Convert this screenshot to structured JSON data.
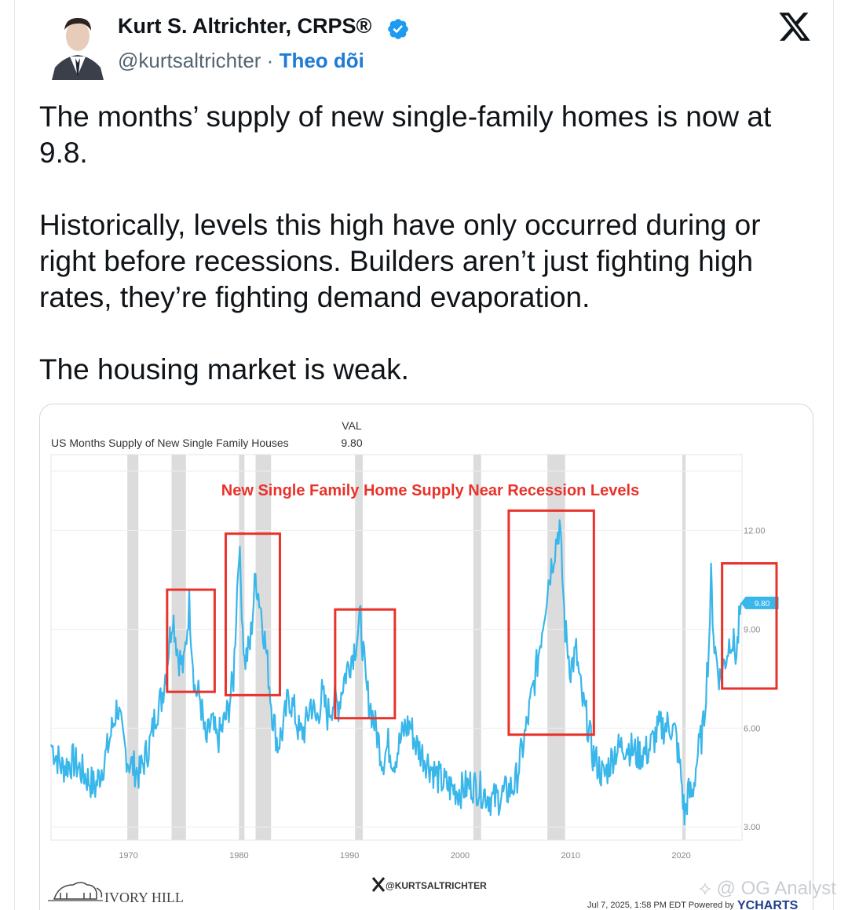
{
  "tweet": {
    "author_name": "Kurt S. Altrichter, CRPS®",
    "handle": "@kurtsaltrichter",
    "separator": "·",
    "follow_label": "Theo dõi",
    "paragraphs": [
      "The months’ supply of new single-family homes is now at 9.8.",
      "Historically, levels this high have only occurred during or right before recessions. Builders aren’t just fighting high rates, they’re fighting demand evaporation.",
      "The housing market is weak."
    ]
  },
  "colors": {
    "line": "#39b6ea",
    "highlight_box": "#e8322a",
    "recession_band": "#dcdcdc",
    "verified": "#1d9bf0",
    "follow": "#1d7bd6"
  },
  "chart": {
    "series_title": "US Months Supply of New Single Family Houses",
    "val_header": "VAL",
    "val_value": "9.80",
    "annotation": "New Single Family Home Supply Near Recession Levels",
    "end_label": "9.80",
    "footer_left": "IVORY HILL",
    "footer_center": "@KURTSALTRICHTER",
    "footer_right_date": "Jul 7, 2025, 1:58 PM EDT Powered by",
    "footer_right_brand": "YCHARTS"
  },
  "chart_data": {
    "type": "line",
    "title": "US Months Supply of New Single Family Houses",
    "subtitle": "New Single Family Home Supply Near Recession Levels",
    "x_ticks": [
      "1970",
      "1980",
      "1990",
      "2000",
      "2010",
      "2020"
    ],
    "y_ticks": [
      "3.00",
      "6.00",
      "9.00",
      "12.00"
    ],
    "xlim": [
      1963,
      2025.5
    ],
    "ylim": [
      2.6,
      14.3
    ],
    "y_axis_side": "right",
    "grid": "horizontal",
    "recession_bands": [
      [
        1969.9,
        1970.9
      ],
      [
        1973.9,
        1975.2
      ],
      [
        1980.0,
        1980.5
      ],
      [
        1981.5,
        1982.9
      ],
      [
        1990.5,
        1991.2
      ],
      [
        2001.2,
        2001.9
      ],
      [
        2007.9,
        2009.5
      ],
      [
        2020.1,
        2020.4
      ]
    ],
    "highlight_periods": [
      [
        1973.5,
        1977.8
      ],
      [
        1978.8,
        1983.7
      ],
      [
        1988.7,
        1994.1
      ],
      [
        2004.4,
        2012.1
      ],
      [
        2023.7,
        2029.2
      ]
    ],
    "series": [
      {
        "values": [
          [
            1963.0,
            5.5
          ],
          [
            1964.0,
            4.8
          ],
          [
            1965.0,
            5.0
          ],
          [
            1966.0,
            4.6
          ],
          [
            1967.0,
            4.2
          ],
          [
            1968.0,
            5.2
          ],
          [
            1969.0,
            6.7
          ],
          [
            1969.5,
            5.6
          ],
          [
            1970.0,
            5.0
          ],
          [
            1971.0,
            4.6
          ],
          [
            1972.0,
            5.6
          ],
          [
            1972.5,
            6.5
          ],
          [
            1973.0,
            6.9
          ],
          [
            1973.5,
            8.0
          ],
          [
            1974.0,
            9.5
          ],
          [
            1974.5,
            8.2
          ],
          [
            1975.0,
            7.8
          ],
          [
            1975.5,
            9.8
          ],
          [
            1976.0,
            7.2
          ],
          [
            1976.5,
            6.9
          ],
          [
            1977.0,
            5.5
          ],
          [
            1977.5,
            6.2
          ],
          [
            1978.0,
            5.6
          ],
          [
            1978.5,
            6.0
          ],
          [
            1979.0,
            6.5
          ],
          [
            1979.5,
            7.5
          ],
          [
            1980.0,
            11.6
          ],
          [
            1980.5,
            8.0
          ],
          [
            1981.0,
            8.5
          ],
          [
            1981.5,
            10.6
          ],
          [
            1982.0,
            9.6
          ],
          [
            1982.5,
            8.2
          ],
          [
            1983.0,
            6.5
          ],
          [
            1983.5,
            5.5
          ],
          [
            1984.0,
            6.0
          ],
          [
            1984.5,
            7.0
          ],
          [
            1985.0,
            6.5
          ],
          [
            1985.5,
            5.8
          ],
          [
            1986.0,
            6.0
          ],
          [
            1986.5,
            6.8
          ],
          [
            1987.0,
            6.2
          ],
          [
            1987.5,
            7.0
          ],
          [
            1988.0,
            6.4
          ],
          [
            1988.5,
            6.8
          ],
          [
            1989.0,
            6.7
          ],
          [
            1989.5,
            7.5
          ],
          [
            1990.0,
            8.0
          ],
          [
            1990.5,
            8.5
          ],
          [
            1991.0,
            9.3
          ],
          [
            1991.5,
            7.2
          ],
          [
            1992.0,
            6.5
          ],
          [
            1992.5,
            5.8
          ],
          [
            1993.0,
            5.0
          ],
          [
            1993.5,
            5.5
          ],
          [
            1994.0,
            5.0
          ],
          [
            1995.0,
            6.0
          ],
          [
            1995.5,
            6.1
          ],
          [
            1996.0,
            5.5
          ],
          [
            1997.0,
            5.0
          ],
          [
            1998.0,
            4.5
          ],
          [
            1999.0,
            4.2
          ],
          [
            2000.0,
            4.1
          ],
          [
            2001.0,
            4.3
          ],
          [
            2002.0,
            4.1
          ],
          [
            2003.0,
            3.8
          ],
          [
            2004.0,
            4.0
          ],
          [
            2005.0,
            4.3
          ],
          [
            2006.0,
            6.0
          ],
          [
            2007.0,
            8.0
          ],
          [
            2008.0,
            10.5
          ],
          [
            2009.0,
            12.2
          ],
          [
            2009.5,
            9.0
          ],
          [
            2010.0,
            7.8
          ],
          [
            2010.5,
            8.3
          ],
          [
            2011.0,
            6.9
          ],
          [
            2011.5,
            6.2
          ],
          [
            2012.0,
            5.2
          ],
          [
            2013.0,
            4.5
          ],
          [
            2014.0,
            5.3
          ],
          [
            2015.0,
            5.5
          ],
          [
            2016.0,
            5.2
          ],
          [
            2017.0,
            5.3
          ],
          [
            2018.0,
            6.0
          ],
          [
            2019.0,
            6.1
          ],
          [
            2019.5,
            5.8
          ],
          [
            2020.0,
            4.5
          ],
          [
            2020.3,
            3.3
          ],
          [
            2020.6,
            4.0
          ],
          [
            2021.0,
            4.0
          ],
          [
            2021.5,
            5.2
          ],
          [
            2022.0,
            6.0
          ],
          [
            2022.5,
            8.5
          ],
          [
            2022.7,
            10.5
          ],
          [
            2023.0,
            8.5
          ],
          [
            2023.5,
            7.5
          ],
          [
            2024.0,
            8.1
          ],
          [
            2024.5,
            8.8
          ],
          [
            2025.0,
            8.2
          ],
          [
            2025.4,
            9.8
          ]
        ]
      }
    ]
  }
}
